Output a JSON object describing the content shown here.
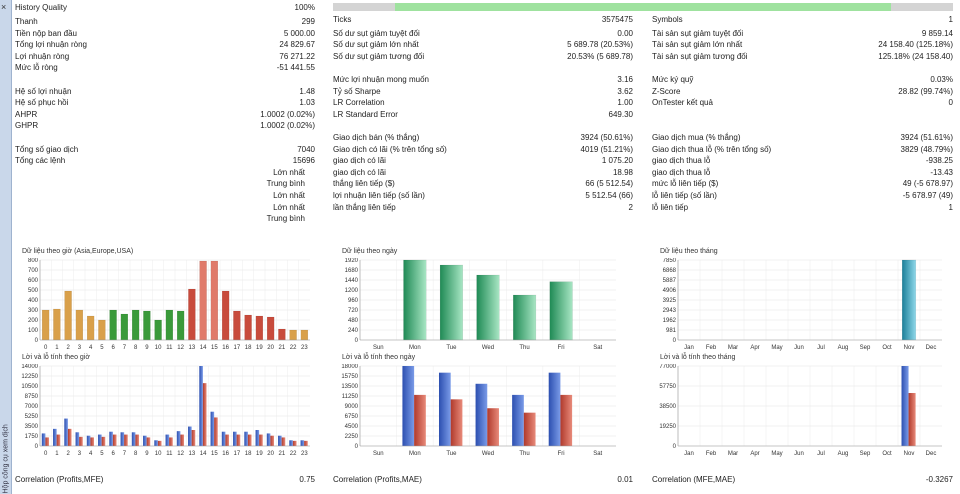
{
  "sidebar": {
    "close": "×",
    "vertical_label": "Hộp công cụ xem dịch"
  },
  "quality": {
    "label": "History Quality",
    "value": "100%",
    "fill_fraction": 0.9
  },
  "col1": [
    {
      "label": "Thanh",
      "value": "299"
    },
    {
      "label": "Tiền nộp ban đầu",
      "value": "5 000.00"
    },
    {
      "label": "Tổng lợi nhuận ròng",
      "value": "24 829.67"
    },
    {
      "label": "Lợi nhuận ròng",
      "value": "76 271.22"
    },
    {
      "label": "Mức lỗ ròng",
      "value": "-51 441.55"
    },
    {
      "label": "",
      "value": ""
    },
    {
      "label": "Hệ số lợi nhuận",
      "value": "1.48"
    },
    {
      "label": "Hệ số phục hồi",
      "value": "1.03"
    },
    {
      "label": "AHPR",
      "value": "1.0002 (0.02%)"
    },
    {
      "label": "GHPR",
      "value": "1.0002 (0.02%)"
    },
    {
      "label": "",
      "value": ""
    },
    {
      "label": "Tổng số giao dịch",
      "value": "7040"
    },
    {
      "label": "Tổng các lệnh",
      "value": "15696"
    },
    {
      "label": "Lớn nhất",
      "value": "",
      "right": true
    },
    {
      "label": "Trung bình",
      "value": "",
      "right": true
    },
    {
      "label": "Lớn nhất",
      "value": "",
      "right": true
    },
    {
      "label": "Lớn nhất",
      "value": "",
      "right": true
    },
    {
      "label": "Trung bình",
      "value": "",
      "right": true
    }
  ],
  "col2": [
    {
      "label": "Ticks",
      "value": "3575475"
    },
    {
      "label": "",
      "value": ""
    },
    {
      "label": "Số dư sụt giảm tuyệt đối",
      "value": "0.00"
    },
    {
      "label": "Số dư sụt giảm lớn nhất",
      "value": "5 689.78 (20.53%)"
    },
    {
      "label": "Số dư sụt giảm tương đối",
      "value": "20.53% (5 689.78)"
    },
    {
      "label": "",
      "value": ""
    },
    {
      "label": "Mức lợi nhuận mong muốn",
      "value": "3.16"
    },
    {
      "label": "Tỷ số Sharpe",
      "value": "3.62"
    },
    {
      "label": "LR Correlation",
      "value": "1.00"
    },
    {
      "label": "LR Standard Error",
      "value": "649.30"
    },
    {
      "label": "",
      "value": ""
    },
    {
      "label": "Giao dịch bán (% thắng)",
      "value": "3924 (50.61%)"
    },
    {
      "label": "Giao dịch có lãi (% trên tổng số)",
      "value": "4019 (51.21%)"
    },
    {
      "label": "giao dịch có lãi",
      "value": "1 075.20"
    },
    {
      "label": "giao dịch có lãi",
      "value": "18.98"
    },
    {
      "label": "thắng liên tiếp ($)",
      "value": "66 (5 512.54)"
    },
    {
      "label": "lợi nhuận liên tiếp (số lần)",
      "value": "5 512.54 (66)"
    },
    {
      "label": "lần thắng liên tiếp",
      "value": "2"
    }
  ],
  "col3": [
    {
      "label": "Symbols",
      "value": "1"
    },
    {
      "label": "",
      "value": ""
    },
    {
      "label": "Tài sản sụt giảm tuyệt đối",
      "value": "9 859.14"
    },
    {
      "label": "Tài sản sụt giảm lớn nhất",
      "value": "24 158.40 (125.18%)"
    },
    {
      "label": "Tài sản sụt giảm tương đối",
      "value": "125.18% (24 158.40)"
    },
    {
      "label": "",
      "value": ""
    },
    {
      "label": "Mức ký quỹ",
      "value": "0.03%"
    },
    {
      "label": "Z-Score",
      "value": "28.82 (99.74%)"
    },
    {
      "label": "OnTester kết quả",
      "value": "0"
    },
    {
      "label": "",
      "value": ""
    },
    {
      "label": "",
      "value": ""
    },
    {
      "label": "Giao dịch mua (% thắng)",
      "value": "3924 (51.61%)"
    },
    {
      "label": "Giao dịch thua lỗ (% trên tổng số)",
      "value": "3829 (48.79%)"
    },
    {
      "label": "giao dịch thua lỗ",
      "value": "-938.25"
    },
    {
      "label": "giao dịch thua lỗ",
      "value": "-13.43"
    },
    {
      "label": "mức lỗ liên tiếp ($)",
      "value": "49 (-5 678.97)"
    },
    {
      "label": "lỗ liên tiếp (số lần)",
      "value": "-5 678.97 (49)"
    },
    {
      "label": "lỗ liên tiếp",
      "value": "1"
    }
  ],
  "chart_data": [
    {
      "type": "bar",
      "title": "Dữ liệu theo giờ (Asia,Europe,USA)",
      "categories": [
        "0",
        "1",
        "2",
        "3",
        "4",
        "5",
        "6",
        "7",
        "8",
        "9",
        "10",
        "11",
        "12",
        "13",
        "14",
        "15",
        "16",
        "17",
        "18",
        "19",
        "20",
        "21",
        "22",
        "23"
      ],
      "values": [
        300,
        310,
        490,
        300,
        240,
        200,
        300,
        260,
        300,
        290,
        200,
        300,
        290,
        510,
        790,
        790,
        490,
        290,
        250,
        240,
        230,
        110,
        100,
        100
      ],
      "colors": [
        "#d9a04a",
        "#d9a04a",
        "#d9a04a",
        "#d9a04a",
        "#d9a04a",
        "#d9a04a",
        "#3a9a3a",
        "#3a9a3a",
        "#3a9a3a",
        "#3a9a3a",
        "#3a9a3a",
        "#3a9a3a",
        "#3a9a3a",
        "#c84b3c",
        "#e07a6a",
        "#e07a6a",
        "#c84b3c",
        "#c84b3c",
        "#c84b3c",
        "#c84b3c",
        "#c84b3c",
        "#c84b3c",
        "#d9a04a",
        "#d9a04a"
      ],
      "yticks": [
        "0",
        "100",
        "200",
        "300",
        "400",
        "500",
        "600",
        "700",
        "800"
      ],
      "ylim": [
        0,
        800
      ]
    },
    {
      "type": "bar",
      "title": "Dữ liệu theo ngày",
      "categories": [
        "Sun",
        "Mon",
        "Tue",
        "Wed",
        "Thu",
        "Fri",
        "Sat"
      ],
      "values": [
        0,
        1920,
        1800,
        1560,
        1080,
        1400,
        0
      ],
      "yticks": [
        "0",
        "240",
        "480",
        "720",
        "960",
        "1200",
        "1440",
        "1680",
        "1920"
      ],
      "ylim": [
        0,
        1920
      ]
    },
    {
      "type": "bar",
      "title": "Dữ liệu theo tháng",
      "categories": [
        "Jan",
        "Feb",
        "Mar",
        "Apr",
        "May",
        "Jun",
        "Jul",
        "Aug",
        "Sep",
        "Oct",
        "Nov",
        "Dec"
      ],
      "values": [
        0,
        0,
        0,
        0,
        0,
        0,
        0,
        0,
        0,
        0,
        7850,
        0
      ],
      "yticks": [
        "0",
        "981",
        "1962",
        "2943",
        "3925",
        "4906",
        "5887",
        "6868",
        "7850"
      ],
      "ylim": [
        0,
        7850
      ]
    },
    {
      "type": "bar",
      "title": "Lời và lỗ tính theo giờ",
      "categories": [
        "0",
        "1",
        "2",
        "3",
        "4",
        "5",
        "6",
        "7",
        "8",
        "9",
        "10",
        "11",
        "12",
        "13",
        "14",
        "15",
        "16",
        "17",
        "18",
        "19",
        "20",
        "21",
        "22",
        "23"
      ],
      "series": [
        {
          "values": [
            2200,
            3000,
            4800,
            2400,
            1800,
            2000,
            2500,
            2400,
            2400,
            1800,
            1000,
            2000,
            2600,
            3400,
            14000,
            6000,
            2500,
            2500,
            2500,
            2800,
            2200,
            1800,
            1000,
            1000
          ]
        },
        {
          "values": [
            1500,
            2000,
            3000,
            1600,
            1500,
            1600,
            2000,
            2000,
            2000,
            1500,
            900,
            1500,
            2000,
            2800,
            11000,
            5000,
            2000,
            2000,
            2000,
            2000,
            1800,
            1500,
            900,
            900
          ]
        }
      ],
      "yticks": [
        "0",
        "1750",
        "3500",
        "5250",
        "7000",
        "8750",
        "10500",
        "12250",
        "14000"
      ],
      "ylim": [
        0,
        14000
      ]
    },
    {
      "type": "bar",
      "title": "Lời và lỗ tính theo ngày",
      "categories": [
        "Sun",
        "Mon",
        "Tue",
        "Wed",
        "Thu",
        "Fri",
        "Sat"
      ],
      "series": [
        {
          "values": [
            0,
            18000,
            16500,
            14000,
            11500,
            16500,
            0
          ]
        },
        {
          "values": [
            0,
            11500,
            10500,
            8500,
            7500,
            11500,
            0
          ]
        }
      ],
      "yticks": [
        "0",
        "2250",
        "4500",
        "6750",
        "9000",
        "11250",
        "13500",
        "15750",
        "18000"
      ],
      "ylim": [
        0,
        18000
      ]
    },
    {
      "type": "bar",
      "title": "Lời và lỗ tính theo tháng",
      "categories": [
        "Jan",
        "Feb",
        "Mar",
        "Apr",
        "May",
        "Jun",
        "Jul",
        "Aug",
        "Sep",
        "Oct",
        "Nov",
        "Dec"
      ],
      "series": [
        {
          "values": [
            0,
            0,
            0,
            0,
            0,
            0,
            0,
            0,
            0,
            0,
            77000,
            0
          ]
        },
        {
          "values": [
            0,
            0,
            0,
            0,
            0,
            0,
            0,
            0,
            0,
            0,
            51000,
            0
          ]
        }
      ],
      "yticks": [
        "0",
        "19250",
        "38500",
        "57750",
        "77000"
      ],
      "ylim": [
        0,
        77000
      ]
    }
  ],
  "footer": [
    {
      "label": "Correlation (Profits,MFE)",
      "value": "0.75"
    },
    {
      "label": "Correlation (Profits,MAE)",
      "value": "0.01"
    },
    {
      "label": "Correlation (MFE,MAE)",
      "value": "-0.3267"
    }
  ],
  "colors": {
    "profit": "#3a5fc0",
    "loss": "#c84b3c",
    "green": "#3aa970",
    "teal": "#2a9fb8"
  }
}
